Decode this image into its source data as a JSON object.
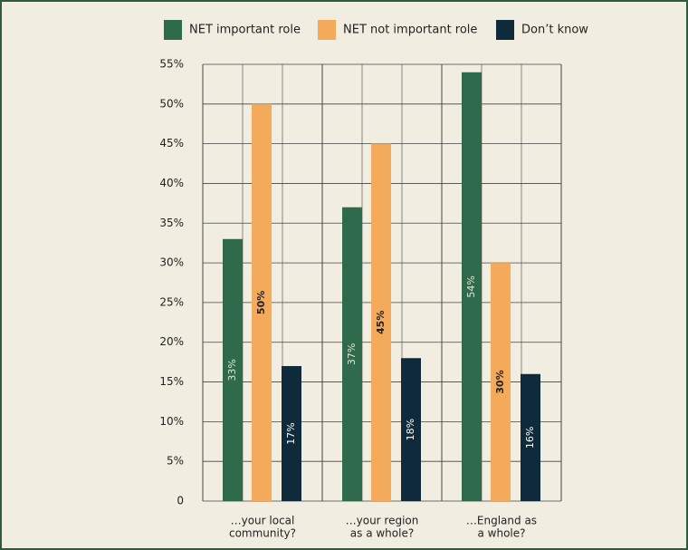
{
  "chart_data": {
    "type": "bar",
    "categories": [
      [
        "…your local",
        "community?"
      ],
      [
        "…your region",
        "as a whole?"
      ],
      [
        "…England as",
        "a whole?"
      ]
    ],
    "series": [
      {
        "name": "NET important role",
        "color": "#2e6a4b",
        "values": [
          33,
          37,
          54
        ],
        "value_labels": [
          "33%",
          "37%",
          "54%"
        ]
      },
      {
        "name": "NET not important role",
        "color": "#f4aa5b",
        "values": [
          50,
          45,
          30
        ],
        "value_labels": [
          "50%",
          "45%",
          "30%"
        ]
      },
      {
        "name": "Don’t know",
        "color": "#0f2a3a",
        "values": [
          17,
          18,
          16
        ],
        "value_labels": [
          "17%",
          "18%",
          "16%"
        ]
      }
    ],
    "ylim": [
      0,
      55
    ],
    "yticks": [
      0,
      {
        "value": 5,
        "label": "5%"
      },
      {
        "value": 10,
        "label": "10%"
      },
      {
        "value": 15,
        "label": "15%"
      },
      {
        "value": 20,
        "label": "20%"
      },
      {
        "value": 25,
        "label": "25%"
      },
      {
        "value": 30,
        "label": "30%"
      },
      {
        "value": 35,
        "label": "35%"
      },
      {
        "value": 40,
        "label": "40%"
      },
      {
        "value": 45,
        "label": "45%"
      },
      {
        "value": 50,
        "label": "50%"
      },
      {
        "value": 55,
        "label": "55%"
      }
    ],
    "grid": true
  }
}
